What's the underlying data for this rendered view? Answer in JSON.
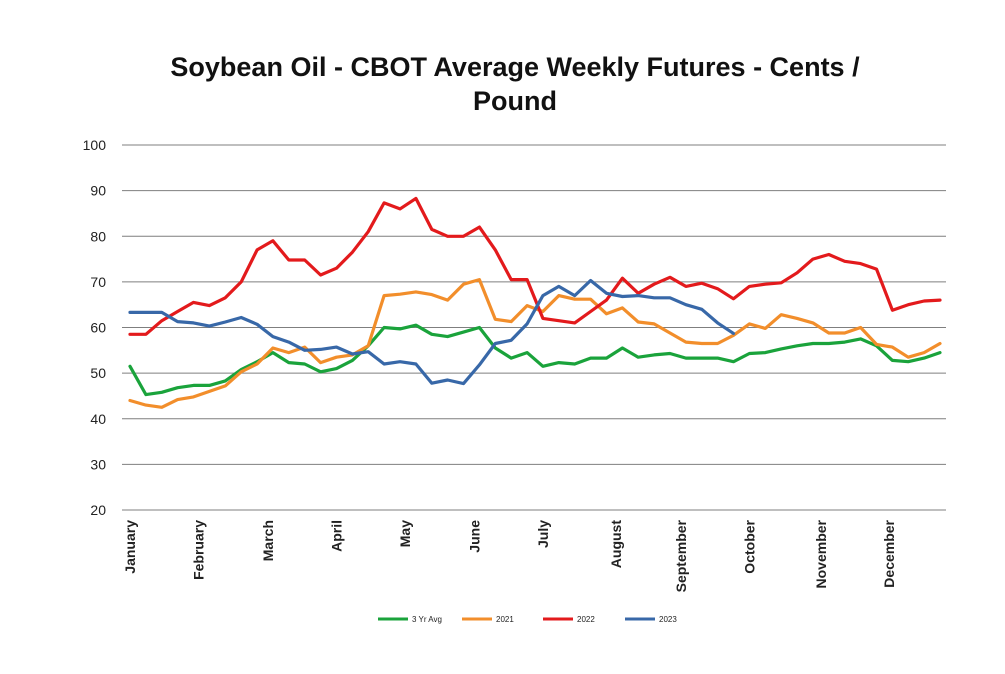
{
  "chart_data": {
    "type": "line",
    "title": "Soybean Oil - CBOT Average Weekly Futures - Cents / Pound",
    "ylim": [
      20,
      100
    ],
    "yticks": [
      20,
      30,
      40,
      50,
      60,
      70,
      80,
      90,
      100
    ],
    "months": [
      {
        "label": "January",
        "week": 0
      },
      {
        "label": "February",
        "week": 4.3
      },
      {
        "label": "March",
        "week": 8.7
      },
      {
        "label": "April",
        "week": 13
      },
      {
        "label": "May",
        "week": 17.3
      },
      {
        "label": "June",
        "week": 21.7
      },
      {
        "label": "July",
        "week": 26
      },
      {
        "label": "August",
        "week": 30.6
      },
      {
        "label": "September",
        "week": 34.7
      },
      {
        "label": "October",
        "week": 39
      },
      {
        "label": "November",
        "week": 43.5
      },
      {
        "label": "December",
        "week": 47.8
      }
    ],
    "x_count": 52,
    "grid": true,
    "legend_position": "bottom",
    "series": [
      {
        "name": "3 Yr Avg",
        "color": "#1aa33b",
        "values": [
          51.5,
          45.3,
          45.8,
          46.8,
          47.3,
          47.3,
          48.3,
          50.8,
          52.5,
          54.5,
          52.3,
          52,
          50.3,
          51,
          52.8,
          56,
          60,
          59.7,
          60.5,
          58.5,
          58,
          59,
          60,
          55.5,
          53.3,
          54.5,
          51.5,
          52.3,
          52,
          53.3,
          53.3,
          55.5,
          53.5,
          54,
          54.3,
          53.3,
          53.3,
          53.3,
          52.5,
          54.3,
          54.5,
          55.3,
          56,
          56.5,
          56.5,
          56.8,
          57.5,
          56,
          52.8,
          52.5,
          53.3,
          54.5
        ]
      },
      {
        "name": "2021",
        "color": "#f28e2b",
        "values": [
          44,
          43,
          42.5,
          44.2,
          44.8,
          46,
          47.2,
          50.3,
          52,
          55.5,
          54.5,
          55.7,
          52.3,
          53.5,
          54,
          56,
          67,
          67.3,
          67.8,
          67.2,
          66,
          69.5,
          70.5,
          61.8,
          61.3,
          64.8,
          63.5,
          67,
          66.2,
          66.2,
          63,
          64.3,
          61.2,
          60.8,
          58.8,
          56.8,
          56.5,
          56.5,
          58.3,
          60.8,
          59.8,
          62.8,
          62,
          61,
          58.8,
          58.8,
          60,
          56.3,
          55.7,
          53.5,
          54.5,
          56.5
        ]
      },
      {
        "name": "2022",
        "color": "#e31a1c",
        "values": [
          58.5,
          58.5,
          61.5,
          63.5,
          65.5,
          64.8,
          66.5,
          70,
          77,
          79,
          74.8,
          74.8,
          71.5,
          73,
          76.5,
          81,
          87.3,
          86,
          88.3,
          81.5,
          80,
          80,
          82,
          77,
          70.5,
          70.5,
          62,
          61.5,
          61,
          63.5,
          66,
          70.8,
          67.5,
          69.5,
          71,
          69,
          69.7,
          68.5,
          66.3,
          69,
          69.5,
          69.8,
          72,
          75,
          76,
          74.5,
          74,
          72.8,
          63.8,
          65,
          65.8,
          66
        ]
      },
      {
        "name": "2023",
        "color": "#3868a8",
        "values": [
          63.3,
          63.3,
          63.3,
          61.3,
          61,
          60.3,
          61.2,
          62.2,
          60.7,
          58,
          56.8,
          55,
          55.2,
          55.7,
          54.2,
          54.7,
          52,
          52.5,
          52,
          47.8,
          48.5,
          47.7,
          51.8,
          56.5,
          57.2,
          60.8,
          67,
          69,
          67,
          70.3,
          67.5,
          66.8,
          67,
          66.5,
          66.5,
          65,
          64,
          61,
          58.7
        ]
      }
    ]
  }
}
